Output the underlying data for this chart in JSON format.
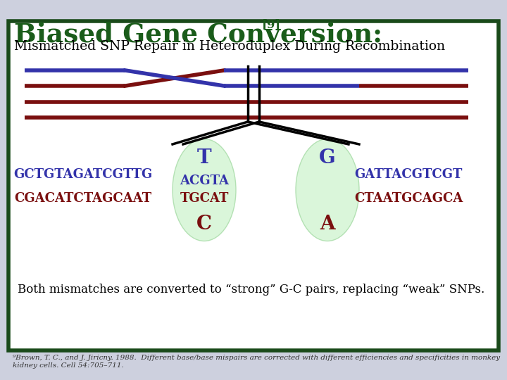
{
  "title": "Biased Gene Conversion:",
  "title_superscript": "[9]",
  "subtitle": "Mismatched SNP Repair in Heteroduplex During Recombination",
  "background_color": "#cdd0de",
  "box_color": "#1a4a1a",
  "box_bg": "#ffffff",
  "title_color": "#1a5c1a",
  "subtitle_color": "#000000",
  "blue_color": "#3333aa",
  "red_color": "#7a0f0f",
  "black_color": "#000000",
  "seq_left_top": "GCTGTAGATCGTTG",
  "seq_left_bottom": "CGACATCTAGCAAT",
  "seq_mid_top": "ACGTA",
  "seq_mid_bottom": "TGCAT",
  "seq_right_top": "GATTACGTCGT",
  "seq_right_bottom": "CTAATGCAGCA",
  "snp1_top": "T",
  "snp1_bottom": "C",
  "snp2_top": "G",
  "snp2_bottom": "A",
  "bottom_text": "Both mismatches are converted to “strong” G-C pairs, replacing “weak” SNPs.",
  "footnote": "⁹Brown, T. C., and J. Jiricny. 1988.  Different base/base mispairs are corrected with different efficiencies and specificities in monkey kidney cells. Cell 54:705–711."
}
